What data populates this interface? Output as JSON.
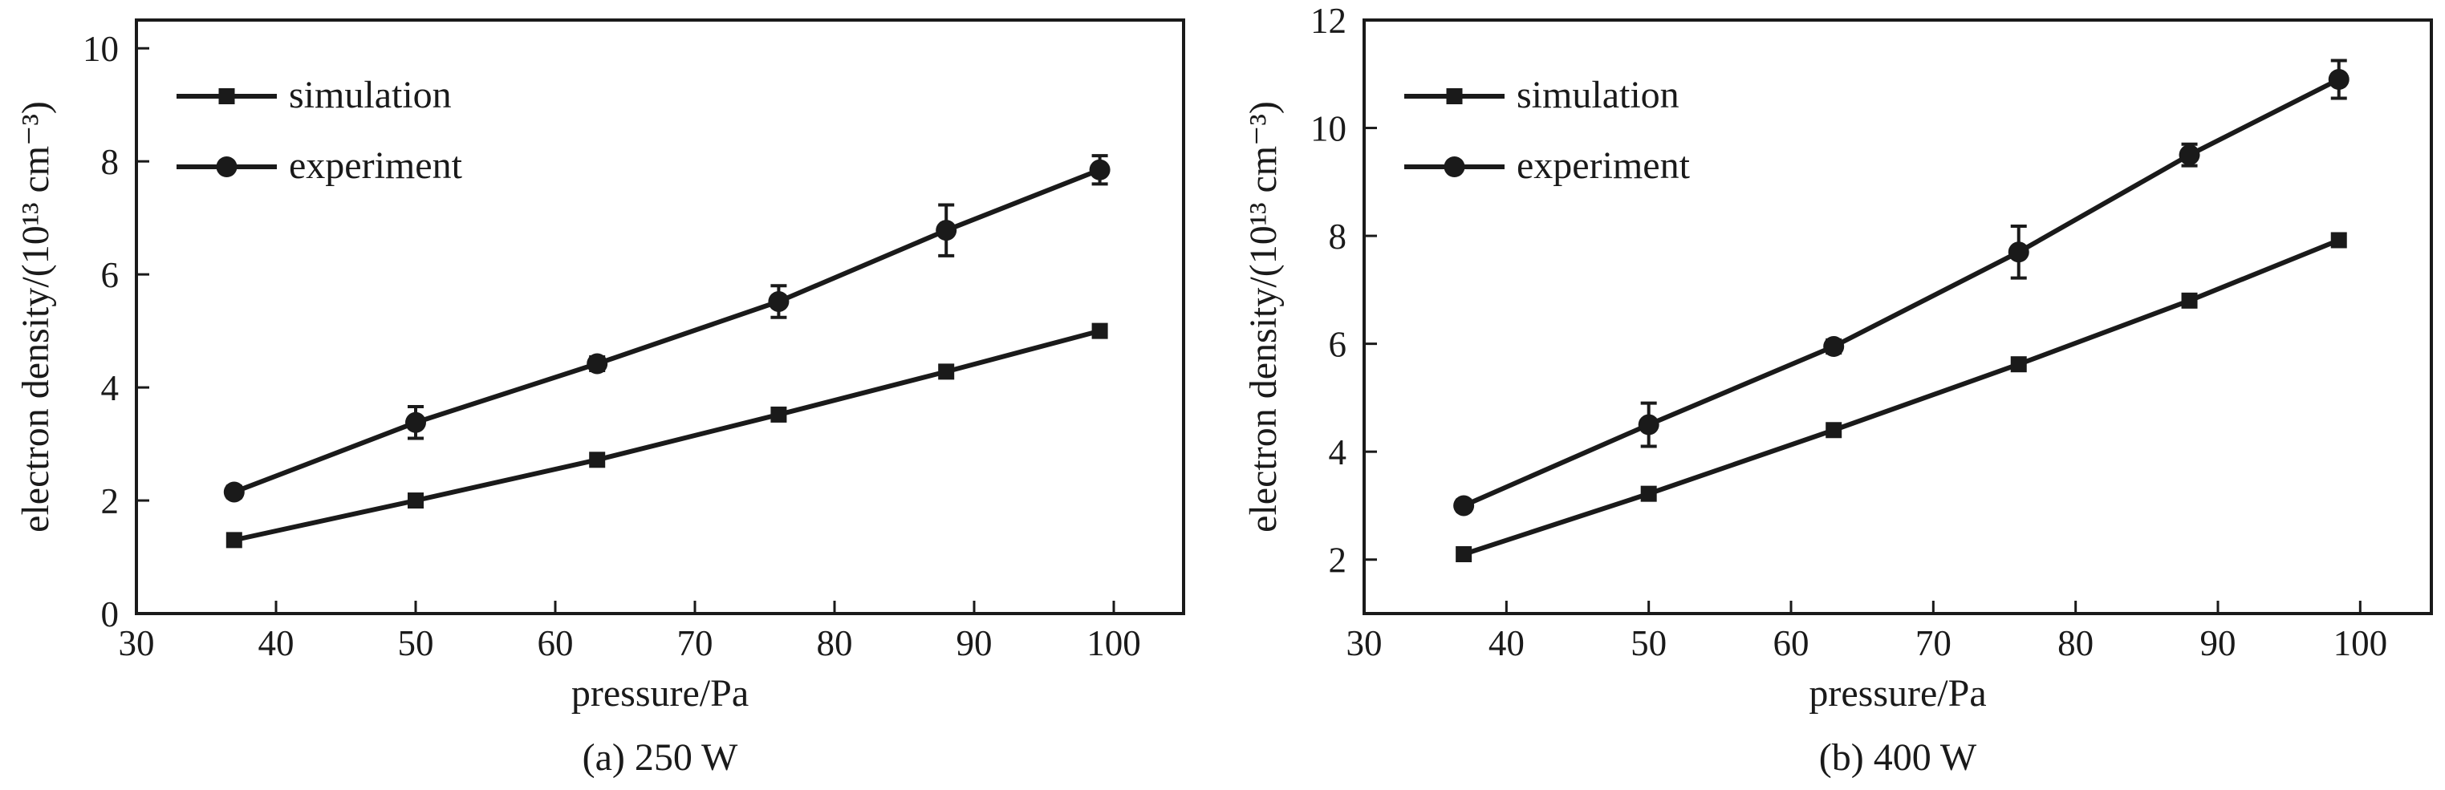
{
  "chart_data": [
    {
      "type": "line",
      "caption": "(a) 250 W",
      "xlabel": "pressure/Pa",
      "ylabel": "electron density/(10¹³ cm⁻³)",
      "xlim": [
        30,
        105
      ],
      "ylim": [
        0,
        10.5
      ],
      "xticks": [
        30,
        40,
        50,
        60,
        70,
        80,
        90,
        100
      ],
      "yticks": [
        0,
        2,
        4,
        6,
        8,
        10
      ],
      "legend_position": "top-left",
      "grid": false,
      "series": [
        {
          "name": "simulation",
          "marker": "square",
          "x": [
            37,
            50,
            63,
            76,
            88,
            99
          ],
          "y": [
            1.3,
            2.0,
            2.72,
            3.52,
            4.28,
            5.0
          ]
        },
        {
          "name": "experiment",
          "marker": "circle",
          "x": [
            37,
            50,
            63,
            76,
            88,
            99
          ],
          "y": [
            2.15,
            3.38,
            4.42,
            5.52,
            6.78,
            7.85
          ],
          "error": [
            0.1,
            0.28,
            0.12,
            0.28,
            0.45,
            0.25
          ]
        }
      ]
    },
    {
      "type": "line",
      "caption": "(b) 400 W",
      "xlabel": "pressure/Pa",
      "ylabel": "electron density/(10¹³ cm⁻³)",
      "xlim": [
        30,
        105
      ],
      "ylim": [
        1,
        12
      ],
      "xticks": [
        30,
        40,
        50,
        60,
        70,
        80,
        90,
        100
      ],
      "yticks": [
        2,
        4,
        6,
        8,
        10,
        12
      ],
      "legend_position": "top-left",
      "grid": false,
      "series": [
        {
          "name": "simulation",
          "marker": "square",
          "x": [
            37,
            50,
            63,
            76,
            88,
            98.5
          ],
          "y": [
            2.1,
            3.22,
            4.4,
            5.62,
            6.8,
            7.92
          ]
        },
        {
          "name": "experiment",
          "marker": "circle",
          "x": [
            37,
            50,
            63,
            76,
            88,
            98.5
          ],
          "y": [
            3.0,
            4.5,
            5.95,
            7.7,
            9.5,
            10.9
          ],
          "error": [
            0.1,
            0.4,
            0.12,
            0.48,
            0.2,
            0.35
          ]
        }
      ]
    }
  ]
}
